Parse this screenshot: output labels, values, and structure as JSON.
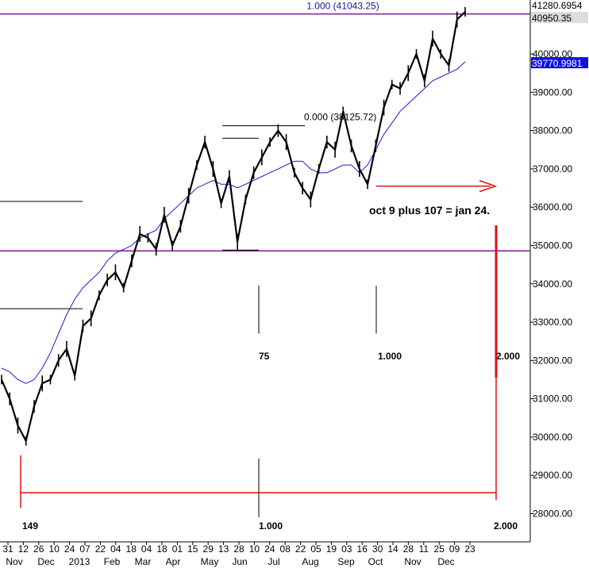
{
  "chart_data": {
    "type": "line",
    "title": "",
    "xlabel": "",
    "ylabel": "",
    "ylim": [
      27700,
      41500
    ],
    "x_tick_labels": [
      "31",
      "12",
      "26",
      "10",
      "24",
      "07",
      "22",
      "04",
      "18",
      "04",
      "18",
      "01",
      "15",
      "29",
      "13",
      "28",
      "10",
      "24",
      "08",
      "22",
      "05",
      "19",
      "03",
      "16",
      "30",
      "14",
      "28",
      "11",
      "25",
      "09",
      "23"
    ],
    "month_labels": [
      "Nov",
      "Dec",
      "2013",
      "Feb",
      "Mar",
      "Apr",
      "May",
      "Jun",
      "Jul",
      "Aug",
      "Sep",
      "Oct",
      "Nov",
      "Dec"
    ],
    "y_tick_labels": [
      "28000.00",
      "29000.00",
      "30000.00",
      "31000.00",
      "32000.00",
      "33000.00",
      "34000.00",
      "35000.00",
      "36000.00",
      "37000.00",
      "38000.00",
      "39000.00",
      "40000.00"
    ],
    "y_ticks": [
      28000,
      29000,
      30000,
      31000,
      32000,
      33000,
      34000,
      35000,
      36000,
      37000,
      38000,
      39000,
      40000
    ],
    "price_badges": [
      "41280.6954",
      "40950.35",
      "39770.9981"
    ],
    "price_badge_values": [
      41280.6954,
      40950.35,
      39770.9981
    ],
    "series": [
      {
        "values": [
          31500,
          31000,
          30300,
          29900,
          30800,
          31400,
          31500,
          32000,
          32300,
          31600,
          32900,
          33100,
          33700,
          34100,
          34300,
          33900,
          34600,
          35300,
          35200,
          34900,
          35800,
          35000,
          35500,
          36300,
          37100,
          37700,
          37000,
          36100,
          36800,
          35100,
          36200,
          36900,
          37300,
          37700,
          38000,
          37700,
          36900,
          36500,
          36200,
          37000,
          37700,
          37500,
          38500,
          37600,
          37000,
          36600,
          37600,
          38600,
          39200,
          39100,
          39500,
          40000,
          39300,
          40400,
          40000,
          39700,
          40900,
          41100
        ]
      },
      {
        "values": [
          31800,
          31700,
          31500,
          31400,
          31500,
          31800,
          32200,
          32700,
          33200,
          33600,
          33900,
          34100,
          34300,
          34600,
          34800,
          34900,
          35000,
          35200,
          35300,
          35400,
          35700,
          35900,
          36100,
          36300,
          36500,
          36600,
          36700,
          36600,
          36600,
          36500,
          36600,
          36700,
          36800,
          36900,
          37000,
          37100,
          37200,
          37200,
          37000,
          36900,
          36900,
          37000,
          37100,
          37100,
          36900,
          37100,
          37500,
          37900,
          38200,
          38500,
          38700,
          38900,
          39100,
          39300,
          39400,
          39500,
          39600,
          39800
        ]
      }
    ],
    "hlines": [
      {
        "label": "1.000 (41043.25)",
        "value": 41043.25
      },
      {
        "label": "0.000 (38125.72)",
        "value": 38125.72
      },
      {
        "label": "",
        "value": 34860
      }
    ],
    "annotations": {
      "projection_text": "oct 9 plus 107 = jan 24.",
      "cycle_top": [
        "75",
        "1.000",
        "2.000"
      ],
      "cycle_bottom": [
        "149",
        "1.000",
        "2.000"
      ]
    },
    "colors": {
      "price": "#000000",
      "moving_average": "#1c1cd8",
      "fib_line": "#7b1f8f",
      "projection": "#e01010",
      "badge_blue": "#1010e0",
      "badge_gray": "#dcdcdc"
    }
  }
}
